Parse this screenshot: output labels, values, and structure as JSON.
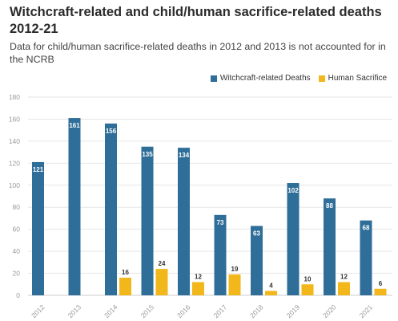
{
  "chart_data": {
    "type": "bar",
    "title": "Witchcraft-related and child/human sacrifice-related deaths 2012-21",
    "subtitle": "Data for child/human sacrifice-related deaths in 2012 and 2013 is not accounted for in the NCRB",
    "categories": [
      "2012",
      "2013",
      "2014",
      "2015",
      "2016",
      "2017",
      "2018",
      "2019",
      "2020",
      "2021"
    ],
    "series": [
      {
        "name": "Witchcraft-related Deaths",
        "color": "#2e6e98",
        "values": [
          121,
          161,
          156,
          135,
          134,
          73,
          63,
          102,
          88,
          68
        ]
      },
      {
        "name": "Human Sacrifice",
        "color": "#f2b71b",
        "values": [
          null,
          null,
          16,
          24,
          12,
          19,
          4,
          10,
          12,
          6
        ]
      }
    ],
    "yticks": [
      0,
      20,
      40,
      60,
      80,
      100,
      120,
      140,
      160,
      180
    ],
    "ylim": [
      0,
      180
    ],
    "xlabel": "",
    "ylabel": "",
    "grid": true,
    "legend": "top-right"
  }
}
